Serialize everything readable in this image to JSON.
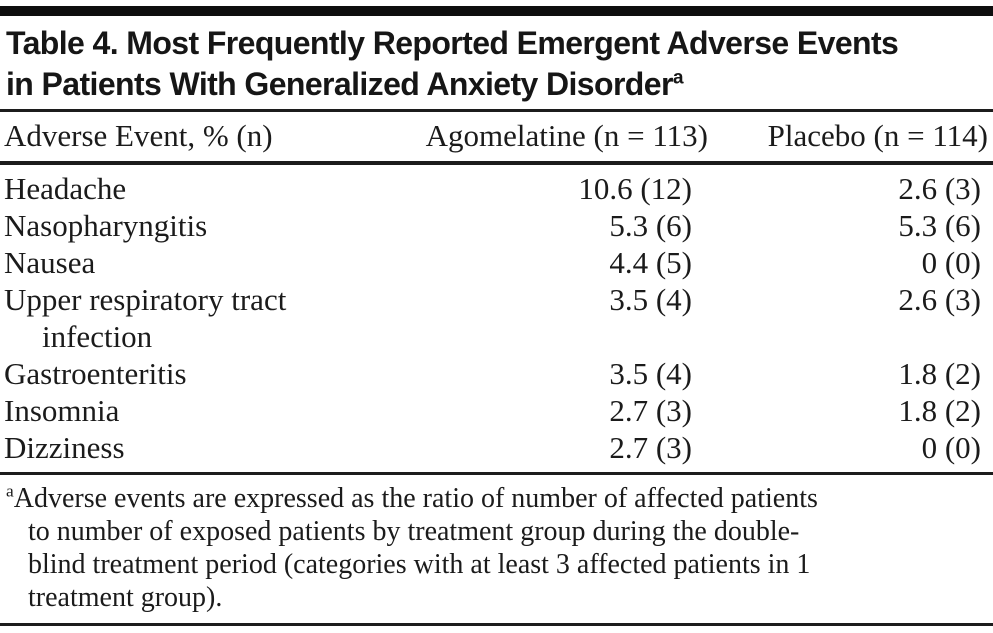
{
  "title": {
    "line1": "Table 4. Most Frequently Reported Emergent Adverse Events",
    "line2": "in Patients With Generalized Anxiety Disorder",
    "footnote_marker": "a"
  },
  "table": {
    "columns": [
      "Adverse Event, % (n)",
      "Agomelatine (n = 113)",
      "Placebo (n = 114)"
    ],
    "rows": [
      {
        "event": "Headache",
        "agomelatine": "10.6 (12)",
        "placebo": "2.6 (3)"
      },
      {
        "event": "Nasopharyngitis",
        "agomelatine": "5.3 (6)",
        "placebo": "5.3 (6)"
      },
      {
        "event": "Nausea",
        "agomelatine": "4.4 (5)",
        "placebo": "0 (0)"
      },
      {
        "event": "Upper respiratory tract infection",
        "agomelatine": "3.5 (4)",
        "placebo": "2.6 (3)"
      },
      {
        "event": "Gastroenteritis",
        "agomelatine": "3.5 (4)",
        "placebo": "1.8 (2)"
      },
      {
        "event": "Insomnia",
        "agomelatine": "2.7 (3)",
        "placebo": "1.8 (2)"
      },
      {
        "event": "Dizziness",
        "agomelatine": "2.7 (3)",
        "placebo": "0 (0)"
      }
    ]
  },
  "footnote": {
    "marker": "a",
    "lines": [
      "Adverse events are expressed as the ratio of number of affected patients",
      "to number of exposed patients by treatment group during the double-",
      "blind treatment period (categories with at least 3 affected patients in 1",
      "treatment group)."
    ],
    "full_text": "Adverse events are expressed as the ratio of number of affected patients to number of exposed patients by treatment group during the double-blind treatment period (categories with at least 3 affected patients in 1 treatment group)."
  },
  "colors": {
    "text": "#1b1b1b",
    "rule": "#1c1c1c",
    "top_bar": "#0e0e0e",
    "background": "#ffffff"
  }
}
